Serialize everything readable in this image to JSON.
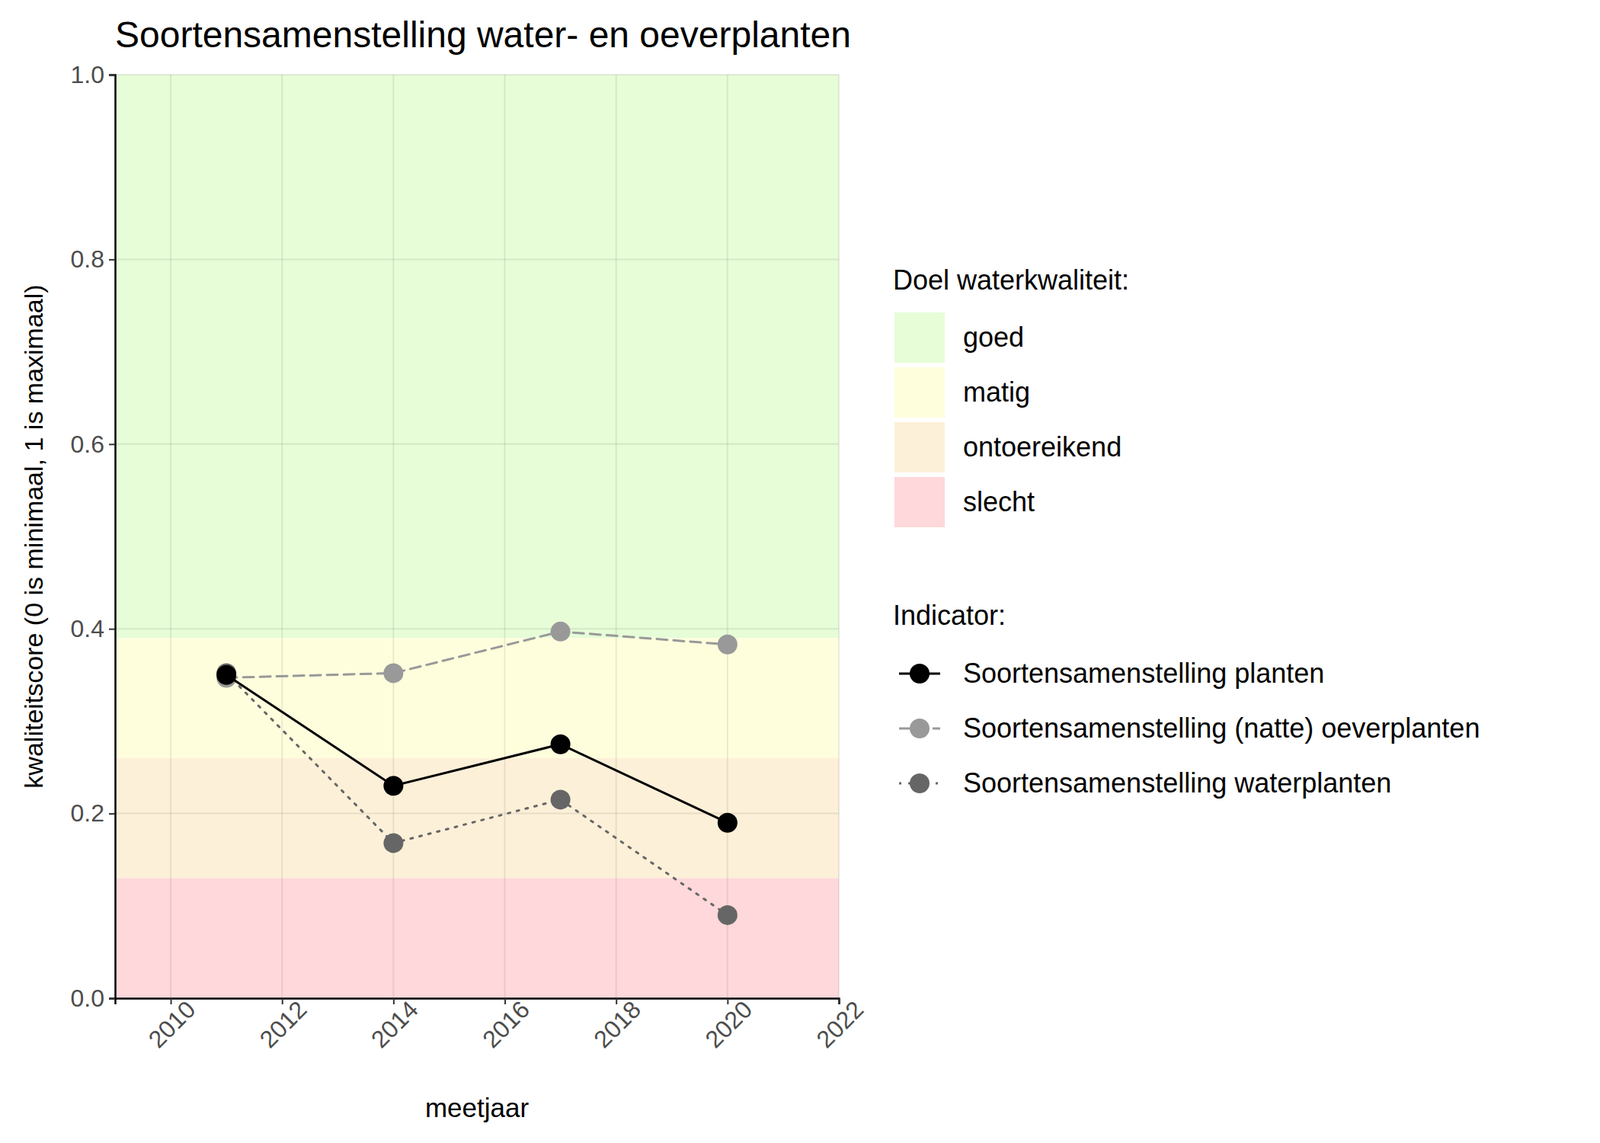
{
  "chart_data": {
    "type": "line",
    "title": "Soortensamenstelling water- en oeverplanten",
    "x_label": "meetjaar",
    "y_label": "kwaliteitscore (0 is minimaal, 1 is maximaal)",
    "x": [
      2011,
      2014,
      2017,
      2020
    ],
    "xlim": [
      2009,
      2022
    ],
    "xticks": [
      2010,
      2012,
      2014,
      2016,
      2018,
      2020,
      2022
    ],
    "ylim": [
      0,
      1
    ],
    "yticks": [
      {
        "value": 0,
        "label": "0.0"
      },
      0.2,
      0.4,
      0.6,
      0.8,
      {
        "value": 1,
        "label": "1.0"
      }
    ],
    "grid": true,
    "band_legend_title": "Doel waterkwaliteit:",
    "bands": [
      {
        "name": "goed",
        "color": "#e6fdd8",
        "from": 0.39,
        "to": 1.0
      },
      {
        "name": "matig",
        "color": "#fefedd",
        "from": 0.26,
        "to": 0.39
      },
      {
        "name": "ontoereikend",
        "color": "#fdf0d8",
        "from": 0.13,
        "to": 0.26
      },
      {
        "name": "slecht",
        "color": "#fed8da",
        "from": 0.0,
        "to": 0.13
      }
    ],
    "legend_title": "Indicator:",
    "series": [
      {
        "name": "Soortensamenstelling planten",
        "color": "#000000",
        "line_style": "solid",
        "marker": "circle",
        "values": [
          0.35,
          0.23,
          0.275,
          0.19
        ]
      },
      {
        "name": "Soortensamenstelling (natte) oeverplanten",
        "color": "#999999",
        "line_style": "dashed",
        "marker": "circle",
        "values": [
          0.347,
          0.352,
          0.397,
          0.383
        ]
      },
      {
        "name": "Soortensamenstelling waterplanten",
        "color": "#666666",
        "line_style": "dotted",
        "marker": "circle",
        "values": [
          0.352,
          0.168,
          0.215,
          0.09
        ]
      }
    ]
  }
}
